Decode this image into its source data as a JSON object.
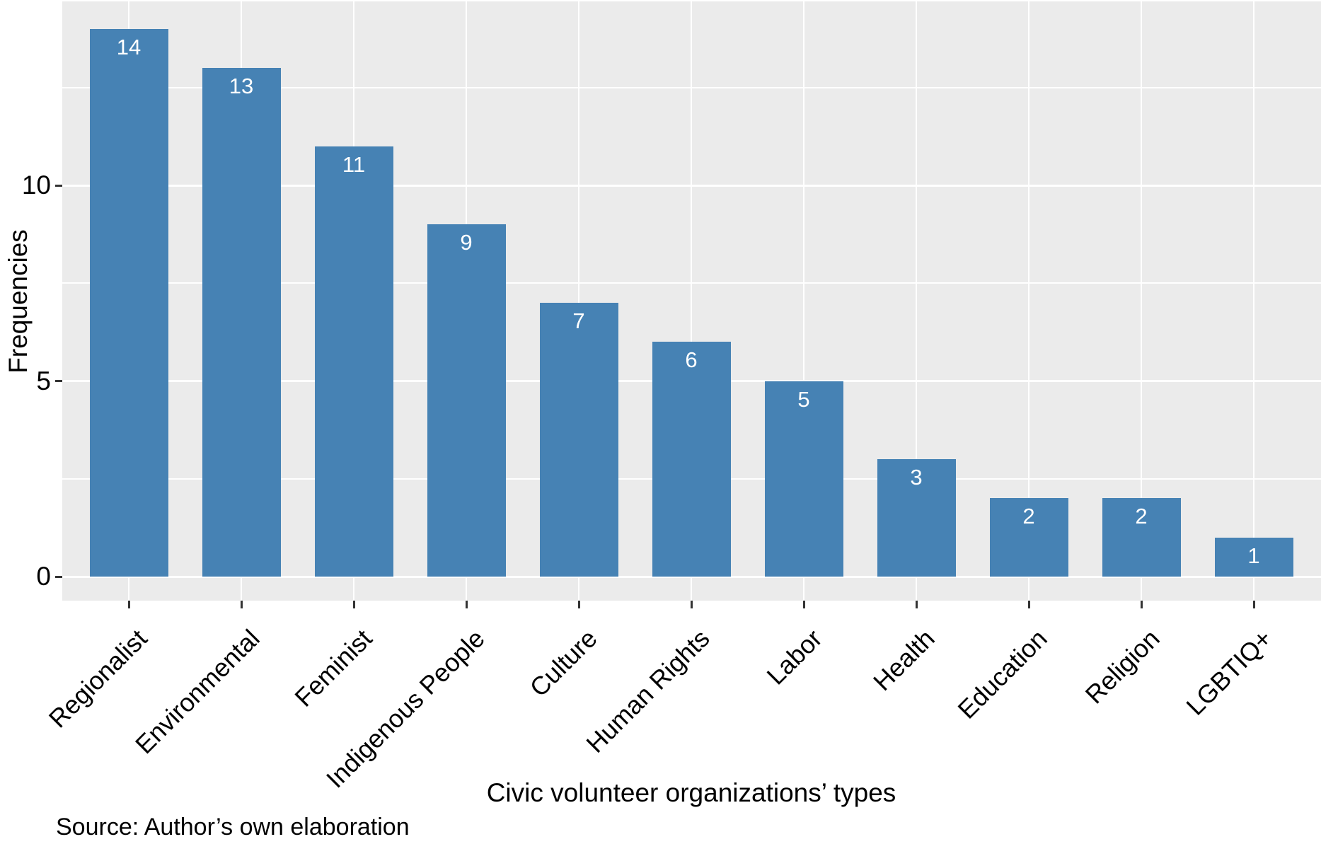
{
  "chart_data": {
    "type": "bar",
    "categories": [
      "Regionalist",
      "Environmental",
      "Feminist",
      "Indigenous People",
      "Culture",
      "Human Rights",
      "Labor",
      "Health",
      "Education",
      "Religion",
      "LGBTIQ+"
    ],
    "values": [
      14,
      13,
      11,
      9,
      7,
      6,
      5,
      3,
      2,
      2,
      1
    ],
    "value_labels": [
      "14",
      "13",
      "11",
      "9",
      "7",
      "6",
      "5",
      "3",
      "2",
      "2",
      "1"
    ],
    "title": "",
    "xlabel": "Civic volunteer organizations’ types",
    "ylabel": "Frequencies",
    "ylim": [
      0,
      14.7
    ],
    "yticks_major": [
      0,
      5,
      10
    ],
    "ytick_labels": [
      "0",
      "5",
      "10"
    ],
    "yticks_minor": [
      2.5,
      7.5,
      12.5
    ],
    "grid": "white major and minor horizontal lines, white vertical lines at category centers, on gray panel",
    "legend": "none",
    "colors": {
      "bar_fill": "#4682B4",
      "panel_background": "#EBEBEB",
      "gridline": "#FFFFFF",
      "axis_text": "#000000",
      "tick_mark": "#333333",
      "bar_value_text": "#FFFFFF",
      "page_background": "#FFFFFF"
    }
  },
  "footer": {
    "source_note": "Source: Author’s own elaboration"
  }
}
